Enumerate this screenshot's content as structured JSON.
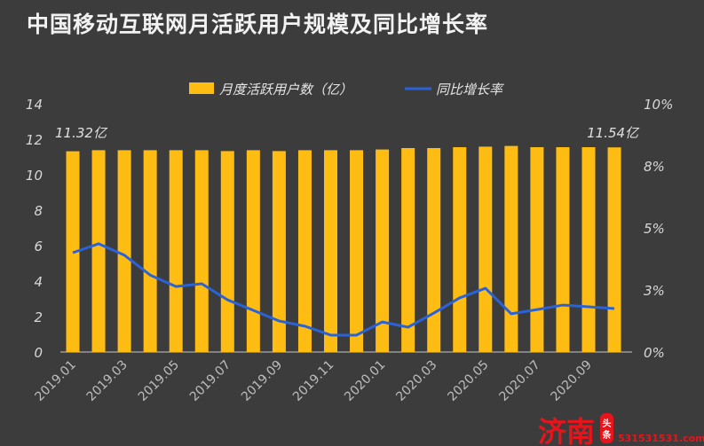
{
  "title": "中国移动互联网月活跃用户规模及同比增长率",
  "chart_data": {
    "type": "bar+line",
    "title": "中国移动互联网月活跃用户规模及同比增长率",
    "categories": [
      "2019.01",
      "2019.02",
      "2019.03",
      "2019.04",
      "2019.05",
      "2019.06",
      "2019.07",
      "2019.08",
      "2019.09",
      "2019.10",
      "2019.11",
      "2019.12",
      "2020.01",
      "2020.02",
      "2020.03",
      "2020.04",
      "2020.05",
      "2020.06",
      "2020.07",
      "2020.08",
      "2020.09",
      "2020.10"
    ],
    "x_tick_labels": [
      "2019.01",
      "2019.03",
      "2019.05",
      "2019.07",
      "2019.09",
      "2019.11",
      "2020.01",
      "2020.03",
      "2020.05",
      "2020.07",
      "2020.09"
    ],
    "series": [
      {
        "name": "月度活跃用户数（亿）",
        "type": "bar",
        "axis": "left",
        "color": "#ffbd14",
        "values": [
          11.32,
          11.38,
          11.38,
          11.38,
          11.38,
          11.38,
          11.33,
          11.38,
          11.33,
          11.38,
          11.38,
          11.38,
          11.42,
          11.5,
          11.5,
          11.55,
          11.58,
          11.62,
          11.55,
          11.55,
          11.55,
          11.54
        ]
      },
      {
        "name": "同比增长率",
        "type": "line",
        "axis": "right",
        "color": "#2a63d8",
        "values": [
          4.0,
          4.36,
          3.9,
          3.1,
          2.64,
          2.75,
          2.1,
          1.68,
          1.25,
          1.04,
          0.68,
          0.68,
          1.21,
          1.0,
          1.57,
          2.18,
          2.57,
          1.54,
          1.71,
          1.89,
          1.82,
          1.75
        ]
      }
    ],
    "left_axis": {
      "range": [
        0,
        14
      ],
      "ticks": [
        "0",
        "2",
        "4",
        "6",
        "8",
        "10",
        "12",
        "14"
      ]
    },
    "right_axis": {
      "range": [
        0,
        10
      ],
      "unit": "%",
      "ticks": [
        "0%",
        "3%",
        "5%",
        "8%",
        "10%"
      ]
    },
    "annotations": [
      {
        "category": "2019.01",
        "text": "11.32亿"
      },
      {
        "category": "2020.10",
        "text": "11.54亿"
      }
    ],
    "legend": "top-center",
    "grid": false
  },
  "watermark": {
    "main": "济南",
    "badge": "头条",
    "url": "531531531.com"
  }
}
